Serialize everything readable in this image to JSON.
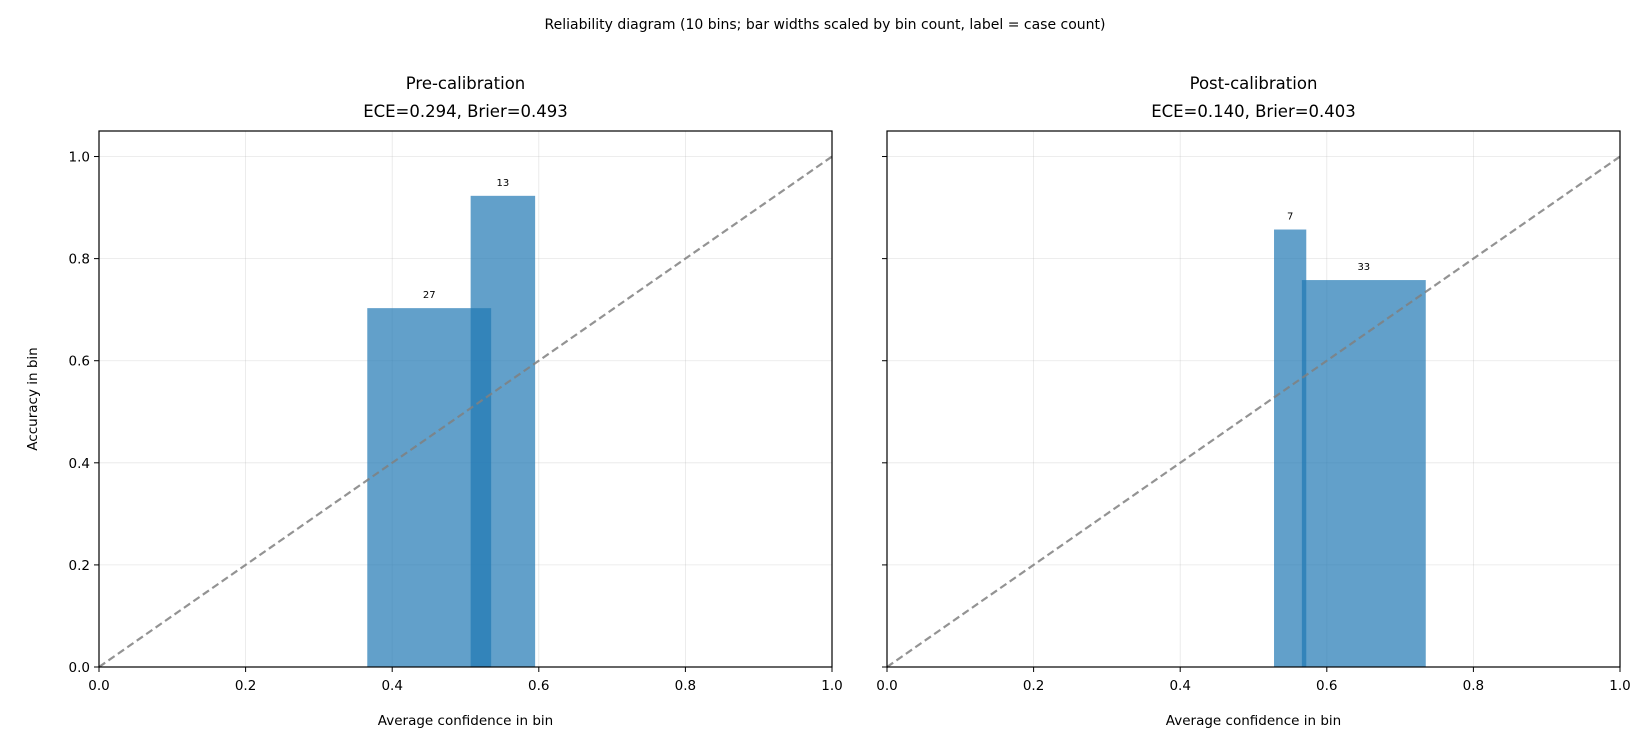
{
  "chart_data": {
    "type": "bar",
    "suptitle": "Reliability diagram (10 bins; bar widths scaled by bin count, label = case count)",
    "bar_color": "#1f77b4",
    "bar_alpha": 0.7,
    "diagonal_color": "#808080",
    "grid": true,
    "x_ticks": [
      "0.0",
      "0.2",
      "0.4",
      "0.6",
      "0.8",
      "1.0"
    ],
    "y_ticks": [
      "0.0",
      "0.2",
      "0.4",
      "0.6",
      "0.8",
      "1.0"
    ],
    "panels": [
      {
        "title_line1": "Pre-calibration",
        "title_line2": "ECE=0.294, Brier=0.493",
        "xlabel": "Average confidence in bin",
        "ylabel": "Accuracy in bin",
        "xlim": [
          0,
          1
        ],
        "ylim": [
          0,
          1.05
        ],
        "bars": [
          {
            "x_start": 0.366,
            "x_end": 0.535,
            "accuracy": 0.703,
            "count": "27"
          },
          {
            "x_start": 0.507,
            "x_end": 0.595,
            "accuracy": 0.923,
            "count": "13"
          }
        ]
      },
      {
        "title_line1": "Post-calibration",
        "title_line2": "ECE=0.140, Brier=0.403",
        "xlabel": "Average confidence in bin",
        "ylabel": "",
        "xlim": [
          0,
          1
        ],
        "ylim": [
          0,
          1.05
        ],
        "bars": [
          {
            "x_start": 0.528,
            "x_end": 0.572,
            "accuracy": 0.857,
            "count": "7"
          },
          {
            "x_start": 0.566,
            "x_end": 0.735,
            "accuracy": 0.758,
            "count": "33"
          }
        ]
      }
    ]
  }
}
